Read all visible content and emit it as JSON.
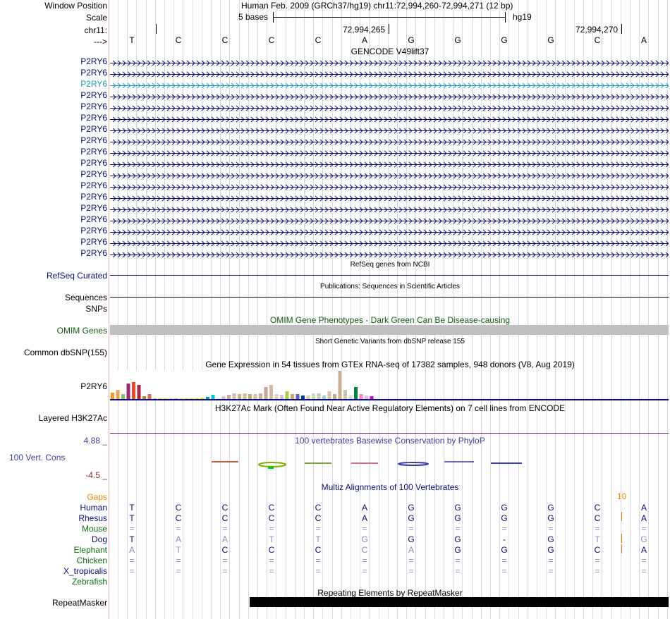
{
  "header": {
    "window_position_label": "Window Position",
    "window_position_value": "Human Feb. 2009 (GRCh37/hg19)   chr11:72,994,260-72,994,271 (12 bp)",
    "scale_label": "Scale",
    "scale_text": "5 bases",
    "scale_db": "hg19",
    "chrom_label": "chr11:",
    "coord1": "72,994,265",
    "coord2": "72,994,270",
    "strand_label": "--->",
    "bases": [
      "T",
      "C",
      "C",
      "C",
      "C",
      "A",
      "G",
      "G",
      "G",
      "G",
      "C",
      "A"
    ]
  },
  "gencode": {
    "title": "GENCODE V49lift37",
    "genes": [
      "P2RY6",
      "P2RY6",
      "P2RY6",
      "P2RY6",
      "P2RY6",
      "P2RY6",
      "P2RY6",
      "P2RY6",
      "P2RY6",
      "P2RY6",
      "P2RY6",
      "P2RY6",
      "P2RY6",
      "P2RY6",
      "P2RY6",
      "P2RY6",
      "P2RY6",
      "P2RY6"
    ]
  },
  "tracks": {
    "refseq_title": "RefSeq genes from NCBI",
    "refseq_label": "RefSeq Curated",
    "pubs_title": "Publications: Sequences in Scientific Articles",
    "sequences_label": "Sequences",
    "snps_label": "SNPs",
    "omim_title": "OMIM Gene Phenotypes - Dark Green Can Be Disease-causing",
    "omim_label": "OMIM Genes",
    "dbsnp_title": "Short Genetic Variants from dbSNP release 155",
    "dbsnp_label": "Common dbSNP(155)",
    "gtex_title": "Gene Expression in 54 tissues from GTEx RNA-seq of 17382 samples, 948 donors (V8, Aug 2019)",
    "gtex_label": "P2RY6",
    "h3k_title": "H3K27Ac Mark (Often Found Near Active Regulatory Elements) on 7 cell lines from ENCODE",
    "h3k_label": "Layered H3K27Ac",
    "cons_title": "100 vertebrates Basewise Conservation by PhyloP",
    "cons_max": "4.88 _",
    "cons_label": "100 Vert. Cons",
    "cons_min": "-4.5 _",
    "multiz_title": "Multiz Alignments of 100 Vertebrates",
    "gaps_label": "Gaps",
    "gaps_value": "10",
    "repeat_title": "Repeating Elements by RepeatMasker",
    "repeat_label": "RepeatMasker"
  },
  "colors": {
    "gene_blue": "#0c0c78",
    "gene_highlight": "#1a9bbf",
    "omim_green": "#0c5c0c",
    "omim_bar": "#c0c0c0",
    "cons_blue": "#3c3ca0",
    "cons_red": "#9c2020",
    "gaps_orange": "#e08c00",
    "h3k_line": "#7a1c6a"
  },
  "gtex_values": [
    {
      "v": 0.25,
      "c": "#f29a1b"
    },
    {
      "v": 0.35,
      "c": "#e8a34c"
    },
    {
      "v": 0.2,
      "c": "#88c06c"
    },
    {
      "v": 0.55,
      "c": "#9b2c74"
    },
    {
      "v": 0.6,
      "c": "#e8492c"
    },
    {
      "v": 0.5,
      "c": "#a82a38"
    },
    {
      "v": 0.12,
      "c": "#cc7a4a"
    },
    {
      "v": 0.2,
      "c": "#d86a50"
    },
    {
      "v": 0.06,
      "c": "#b0b0b0"
    },
    {
      "v": 0.06,
      "c": "#ffd000"
    },
    {
      "v": 0.05,
      "c": "#e6e600"
    },
    {
      "v": 0.03,
      "c": "#d0d0d0"
    },
    {
      "v": 0.03,
      "c": "#b0b0b0"
    },
    {
      "v": 0.05,
      "c": "#fff000"
    },
    {
      "v": 0.05,
      "c": "#f4e000"
    },
    {
      "v": 0.06,
      "c": "#e8e800"
    },
    {
      "v": 0.06,
      "c": "#f0d000"
    },
    {
      "v": 0.08,
      "c": "#e6e600"
    },
    {
      "v": 0.1,
      "c": "#00a0a8"
    },
    {
      "v": 0.18,
      "c": "#00c8d0"
    },
    {
      "v": 0.03,
      "c": "#dddddd"
    },
    {
      "v": 0.12,
      "c": "#d8c0c8"
    },
    {
      "v": 0.18,
      "c": "#c8a8a8"
    },
    {
      "v": 0.22,
      "c": "#d8b8b0"
    },
    {
      "v": 0.2,
      "c": "#c8b090"
    },
    {
      "v": 0.22,
      "c": "#d4b890"
    },
    {
      "v": 0.2,
      "c": "#c8a880"
    },
    {
      "v": 0.2,
      "c": "#d8c0a0"
    },
    {
      "v": 0.22,
      "c": "#c8b0a0"
    },
    {
      "v": 0.45,
      "c": "#c8a890"
    },
    {
      "v": 0.5,
      "c": "#d8b8a0"
    },
    {
      "v": 0.2,
      "c": "#e0d0c0"
    },
    {
      "v": 0.18,
      "c": "#d0c0e0"
    },
    {
      "v": 0.3,
      "c": "#a8d040"
    },
    {
      "v": 0.2,
      "c": "#c0a880"
    },
    {
      "v": 0.2,
      "c": "#6060c0"
    },
    {
      "v": 0.15,
      "c": "#0040a0"
    },
    {
      "v": 0.15,
      "c": "#d8c8b0"
    },
    {
      "v": 0.22,
      "c": "#c0e0b0"
    },
    {
      "v": 0.22,
      "c": "#c8c8b0"
    },
    {
      "v": 0.15,
      "c": "#90d8d0"
    },
    {
      "v": 0.3,
      "c": "#d8c0a0"
    },
    {
      "v": 0.2,
      "c": "#c0a890"
    },
    {
      "v": 1.0,
      "c": "#c8b090"
    },
    {
      "v": 0.35,
      "c": "#d0c0b0"
    },
    {
      "v": 0.15,
      "c": "#d8d8d8"
    },
    {
      "v": 0.45,
      "c": "#008040"
    },
    {
      "v": 0.2,
      "c": "#ff80c0"
    },
    {
      "v": 0.15,
      "c": "#e0c0e0"
    },
    {
      "v": 0.12,
      "c": "#e000e0"
    }
  ],
  "multiz": [
    {
      "name": "Human",
      "color": "#0c0c78",
      "bases": [
        "T",
        "C",
        "C",
        "C",
        "C",
        "A",
        "G",
        "G",
        "G",
        "G",
        "C",
        "A"
      ],
      "bc": "#0c0c78"
    },
    {
      "name": "Rhesus",
      "color": "#0c0c78",
      "bases": [
        "T",
        "C",
        "C",
        "C",
        "C",
        "A",
        "G",
        "G",
        "G",
        "G",
        "C",
        "A"
      ],
      "bc": "#0c0c78"
    },
    {
      "name": "Mouse",
      "color": "#0c6c0c",
      "bases": [
        "=",
        "=",
        "=",
        "=",
        "=",
        "=",
        "=",
        "=",
        "=",
        "=",
        "=",
        "="
      ],
      "bc": "#8c8cb8"
    },
    {
      "name": "Dog",
      "color": "#0c0c78",
      "bases": [
        "T",
        "A",
        "A",
        "T",
        "T",
        "G",
        "G",
        "G",
        "-",
        "G",
        "T",
        "G"
      ],
      "bc": "#0c0c78"
    },
    {
      "name": "Elephant",
      "color": "#0c6c0c",
      "bases": [
        "A",
        "T",
        "C",
        "C",
        "C",
        "C",
        "A",
        "G",
        "G",
        "G",
        "C",
        "A"
      ],
      "bc": "#0c0c78"
    },
    {
      "name": "Chicken",
      "color": "#0c6c0c",
      "bases": [
        "=",
        "=",
        "=",
        "=",
        "=",
        "=",
        "=",
        "=",
        "=",
        "=",
        "=",
        "="
      ],
      "bc": "#8c8cb8"
    },
    {
      "name": "X_tropicalis",
      "color": "#0c0c78",
      "bases": [
        "=",
        "=",
        "=",
        "=",
        "=",
        "=",
        "=",
        "=",
        "=",
        "=",
        "=",
        "="
      ],
      "bc": "#8c8cb8"
    },
    {
      "name": "Zebrafish",
      "color": "#0c6c0c",
      "bases": [
        "",
        "",
        "",
        "",
        "",
        "",
        "",
        "",
        "",
        "",
        "",
        ""
      ],
      "bc": "#8c8cb8"
    }
  ]
}
